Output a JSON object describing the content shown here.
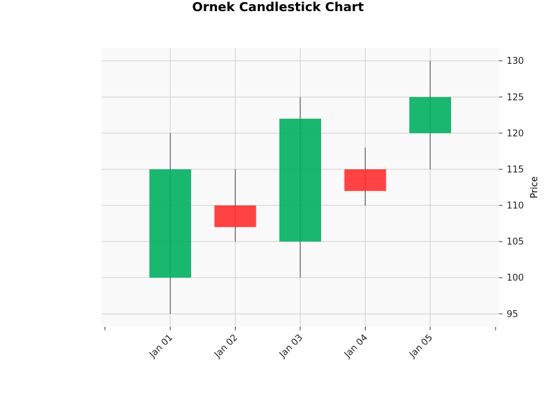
{
  "chart_data": {
    "type": "candlestick",
    "title": "Ornek Candlestick Chart",
    "xlabel": "",
    "ylabel": "Price",
    "categories": [
      "Jan 01",
      "Jan 02",
      "Jan 03",
      "Jan 04",
      "Jan 05"
    ],
    "open": [
      100,
      110,
      105,
      115,
      120
    ],
    "high": [
      120,
      115,
      125,
      118,
      130
    ],
    "low": [
      95,
      105,
      100,
      110,
      115
    ],
    "close": [
      115,
      107,
      122,
      112,
      125
    ],
    "yticks": [
      95,
      100,
      105,
      110,
      115,
      120,
      125,
      130
    ],
    "ylim": [
      93.2,
      131.8
    ],
    "grid": true,
    "y_axis_side": "right",
    "colors": {
      "up": "#00af5f",
      "down": "#ff2d2d",
      "wick": "#555555",
      "grid": "#d0d0d0",
      "plot_background": "#f9f9f9"
    }
  }
}
